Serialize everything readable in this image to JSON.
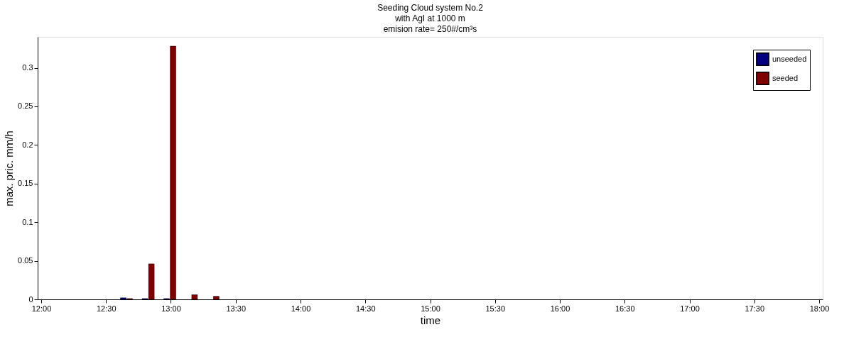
{
  "chart_data": {
    "type": "bar",
    "title": "Seeding Cloud system No.2\nwith AgI at 1000 m\nemision rate= 250#/cm³s",
    "xlabel": "time",
    "ylabel": "max. pric. mm/h",
    "series": [
      {
        "name": "unseeded",
        "color": "#000080",
        "x": [
          12.633,
          12.8,
          12.967
        ],
        "values": [
          0.002,
          0.001,
          0.001
        ]
      },
      {
        "name": "seeded",
        "color": "#800000",
        "x": [
          12.683,
          12.85,
          13.017,
          13.183,
          13.35
        ],
        "values": [
          0.001,
          0.046,
          0.328,
          0.006,
          0.004
        ]
      }
    ],
    "xlim": [
      12,
      18
    ],
    "xticks": [
      {
        "value": 12,
        "label": "12:00"
      },
      {
        "value": 12.5,
        "label": "12:30"
      },
      {
        "value": 13,
        "label": "13:00"
      },
      {
        "value": 13.5,
        "label": "13:30"
      },
      {
        "value": 14,
        "label": "14:00"
      },
      {
        "value": 14.5,
        "label": "14:30"
      },
      {
        "value": 15,
        "label": "15:00"
      },
      {
        "value": 15.5,
        "label": "15:30"
      },
      {
        "value": 16,
        "label": "16:00"
      },
      {
        "value": 16.5,
        "label": "16:30"
      },
      {
        "value": 17,
        "label": "17:00"
      },
      {
        "value": 17.5,
        "label": "17:30"
      },
      {
        "value": 18,
        "label": "18:00"
      }
    ],
    "ylim": [
      0,
      0.34
    ],
    "yticks": [
      0,
      0.05,
      0.1,
      0.15,
      0.2,
      0.25,
      0.3
    ],
    "grid": false,
    "legend": "top right"
  }
}
